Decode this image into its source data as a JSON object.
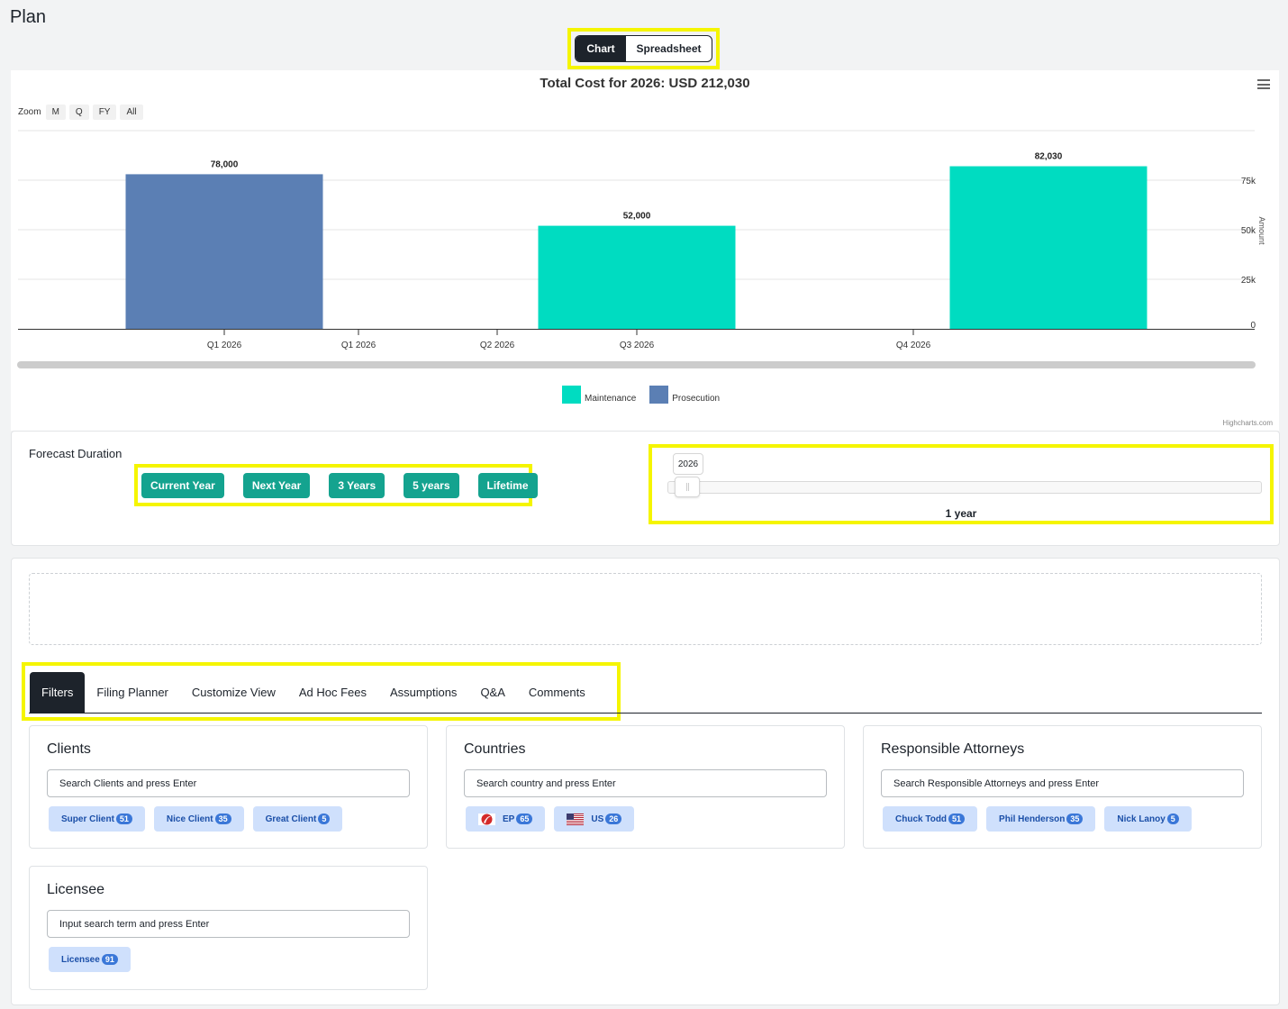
{
  "page": {
    "title": "Plan"
  },
  "view_toggle": {
    "chart": "Chart",
    "spreadsheet": "Spreadsheet",
    "selected": "Chart"
  },
  "chart": {
    "menu_icon": "hamburger-menu-icon",
    "zoom_label": "Zoom",
    "zoom_buttons": [
      "M",
      "Q",
      "FY",
      "All"
    ],
    "credits": "Highcharts.com",
    "colors": {
      "Maintenance": "#00dcc1",
      "Prosecution": "#5b7fb4"
    }
  },
  "chart_data": {
    "type": "bar",
    "title": "Total Cost for 2026: USD 212,030",
    "categories": [
      "Q1 2026",
      "Q1 2026",
      "Q2 2026",
      "Q3 2026",
      "Q4 2026"
    ],
    "series": [
      {
        "name": "Prosecution",
        "values": [
          78000,
          null,
          null,
          null,
          null
        ]
      },
      {
        "name": "Maintenance",
        "values": [
          null,
          null,
          null,
          52000,
          82030
        ]
      }
    ],
    "data_labels": [
      "78,000",
      "52,000",
      "82,030"
    ],
    "ylabel": "Amount",
    "yticks": [
      "0",
      "25k",
      "50k",
      "75k"
    ],
    "ylim": [
      0,
      100000
    ],
    "y_axis_side": "right",
    "legend": [
      "Maintenance",
      "Prosecution"
    ],
    "legend_position": "bottom-center",
    "grid": true
  },
  "forecast": {
    "label": "Forecast Duration",
    "buttons": [
      "Current Year",
      "Next Year",
      "3 Years",
      "5 years",
      "Lifetime"
    ],
    "slider": {
      "value_label": "2026",
      "caption": "1 year",
      "position": 0
    }
  },
  "tabs": {
    "items": [
      "Filters",
      "Filing Planner",
      "Customize View",
      "Ad Hoc Fees",
      "Assumptions",
      "Q&A",
      "Comments"
    ],
    "active": "Filters"
  },
  "filters": {
    "clients": {
      "title": "Clients",
      "placeholder": "Search Clients and press Enter",
      "chips": [
        {
          "label": "Super Client",
          "count": "51"
        },
        {
          "label": "Nice Client",
          "count": "35"
        },
        {
          "label": "Great Client",
          "count": "5"
        }
      ]
    },
    "countries": {
      "title": "Countries",
      "placeholder": "Search country and press Enter",
      "chips": [
        {
          "label": "EP",
          "count": "65",
          "icon": "ep-flag-icon"
        },
        {
          "label": "US",
          "count": "26",
          "icon": "us-flag-icon"
        }
      ]
    },
    "attorneys": {
      "title": "Responsible Attorneys",
      "placeholder": "Search Responsible Attorneys and press Enter",
      "chips": [
        {
          "label": "Chuck Todd",
          "count": "51"
        },
        {
          "label": "Phil Henderson",
          "count": "35"
        },
        {
          "label": "Nick Lanoy",
          "count": "5"
        }
      ]
    },
    "licensee": {
      "title": "Licensee",
      "placeholder": "Input search term and press Enter",
      "chips": [
        {
          "label": "Licensee",
          "count": "91"
        }
      ]
    }
  }
}
